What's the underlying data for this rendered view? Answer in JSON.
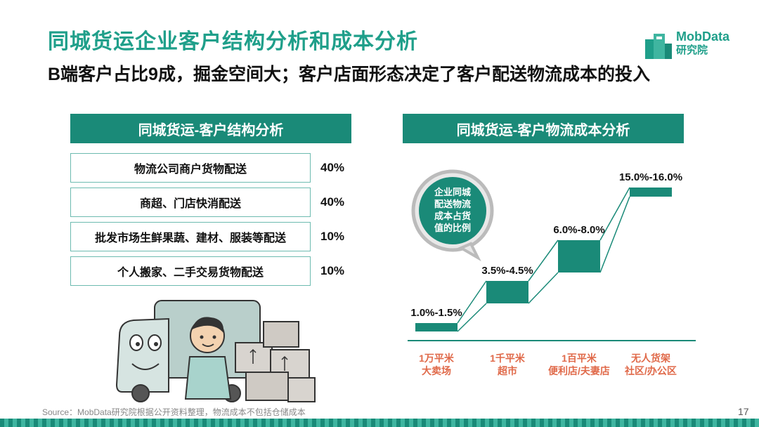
{
  "header": {
    "title": "同城货运企业客户结构分析和成本分析",
    "subtitle": "B端客户占比9成，掘金空间大；客户店面形态决定了客户配送物流成本的投入",
    "logo_name": "MobData",
    "logo_sub": "研究院"
  },
  "left_panel": {
    "header": "同城货运-客户结构分析",
    "rows": [
      {
        "label": "物流公司商户货物配送",
        "pct": "40%"
      },
      {
        "label": "商超、门店快消配送",
        "pct": "40%"
      },
      {
        "label": "批发市场生鲜果蔬、建材、服装等配送",
        "pct": "10%"
      },
      {
        "label": "个人搬家、二手交易货物配送",
        "pct": "10%"
      }
    ]
  },
  "right_panel": {
    "header": "同城货运-客户物流成本分析",
    "bubble_lines": [
      "企业同城",
      "配送物流",
      "成本占货",
      "值的比例"
    ]
  },
  "chart_data": {
    "type": "bar",
    "categories": [
      [
        "1万平米",
        "大卖场"
      ],
      [
        "1千平米",
        "超市"
      ],
      [
        "1百平米",
        "便利店/夫妻店"
      ],
      [
        "无人货架",
        "社区/办公区"
      ]
    ],
    "series": [
      {
        "values_low": [
          1.0,
          3.5,
          6.0,
          15.0
        ],
        "values_high": [
          1.5,
          4.5,
          8.0,
          16.0
        ]
      }
    ],
    "data_labels": [
      "1.0%-1.5%",
      "3.5%-4.5%",
      "6.0%-8.0%",
      "15.0%-16.0%"
    ],
    "colors": {
      "bar": "#1a8a78",
      "axis": "#1a8a78",
      "category_text": "#e06a4a"
    }
  },
  "footer": {
    "source": "Source：MobData研究院根据公开资料整理，物流成本不包括仓储成本",
    "page": "17"
  }
}
